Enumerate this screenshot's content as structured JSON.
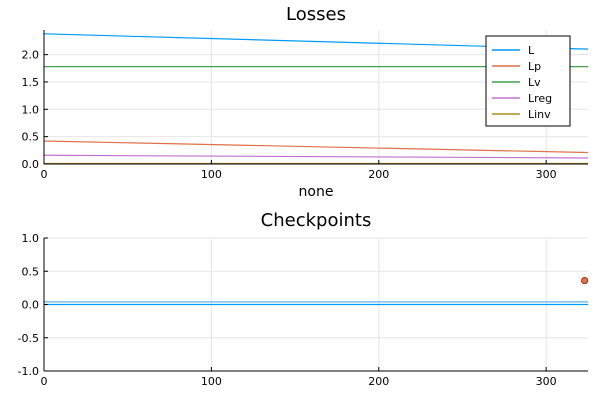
{
  "chart_data": [
    {
      "type": "line",
      "title": "Losses",
      "xlabel": "none",
      "ylabel": "",
      "xlim": [
        0,
        325
      ],
      "ylim": [
        0,
        2.45
      ],
      "xticks": [
        0,
        100,
        200,
        300
      ],
      "yticks": [
        0.0,
        0.5,
        1.0,
        1.5,
        2.0
      ],
      "xtick_labels": [
        "0",
        "100",
        "200",
        "300"
      ],
      "ytick_labels": [
        "0.0",
        "0.5",
        "1.0",
        "1.5",
        "2.0"
      ],
      "grid": true,
      "legend_position": "top-right",
      "series": [
        {
          "name": "L",
          "color": "#009af9",
          "x": [
            0,
            325
          ],
          "y": [
            2.38,
            2.1
          ]
        },
        {
          "name": "Lp",
          "color": "#e26f46",
          "x": [
            0,
            325
          ],
          "y": [
            0.42,
            0.21
          ]
        },
        {
          "name": "Lv",
          "color": "#3da44d",
          "x": [
            0,
            325
          ],
          "y": [
            1.78,
            1.78
          ]
        },
        {
          "name": "Lreg",
          "color": "#c271d2",
          "x": [
            0,
            325
          ],
          "y": [
            0.16,
            0.11
          ]
        },
        {
          "name": "Linv",
          "color": "#ac8e18",
          "x": [
            0,
            325
          ],
          "y": [
            0.01,
            0.01
          ]
        }
      ]
    },
    {
      "type": "line",
      "title": "Checkpoints",
      "xlabel": "",
      "ylabel": "",
      "xlim": [
        0,
        325
      ],
      "ylim": [
        -1.0,
        1.0
      ],
      "xticks": [
        0,
        100,
        200,
        300
      ],
      "yticks": [
        -1.0,
        -0.5,
        0.0,
        0.5,
        1.0
      ],
      "xtick_labels": [
        "0",
        "100",
        "200",
        "300"
      ],
      "ytick_labels": [
        "-1.0",
        "-0.5",
        "0.0",
        "0.5",
        "1.0"
      ],
      "grid": true,
      "series": [
        {
          "color": "#009af9",
          "x": [
            0,
            325
          ],
          "y": [
            0.0,
            0.0
          ]
        },
        {
          "color": "#5fb4e8",
          "x": [
            0,
            325
          ],
          "y": [
            0.04,
            0.04
          ]
        }
      ],
      "points": [
        {
          "x": 323,
          "y": 0.36,
          "color": "#e26f46"
        }
      ]
    }
  ]
}
